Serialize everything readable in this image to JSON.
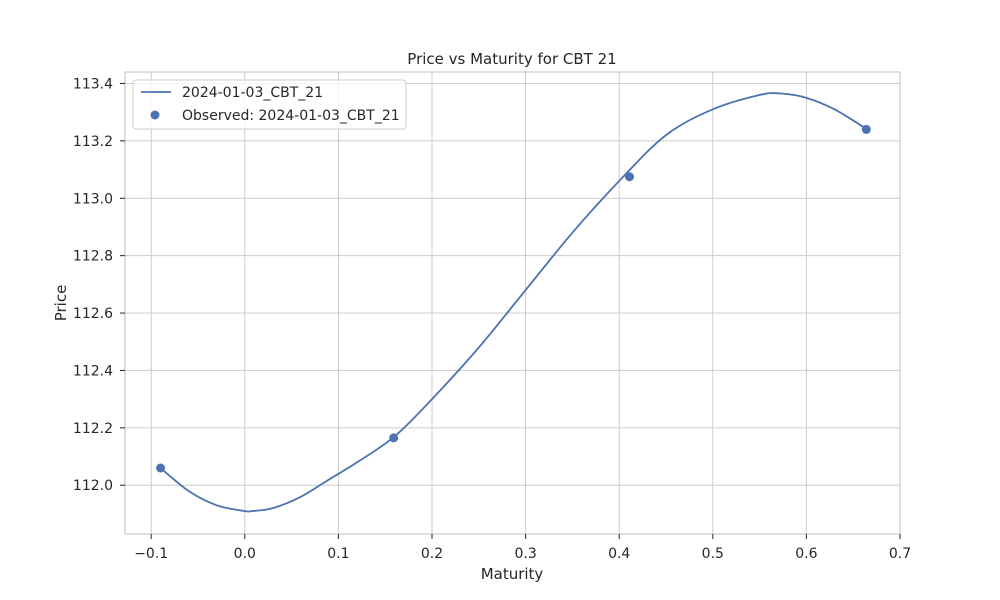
{
  "chart_data": {
    "type": "line",
    "title": "Price vs Maturity for CBT 21",
    "xlabel": "Maturity",
    "ylabel": "Price",
    "xlim": [
      -0.128,
      0.7
    ],
    "ylim": [
      111.83,
      113.44
    ],
    "xticks": [
      -0.1,
      0.0,
      0.1,
      0.2,
      0.3,
      0.4,
      0.5,
      0.6,
      0.7
    ],
    "xtick_labels": [
      "−0.1",
      "0.0",
      "0.1",
      "0.2",
      "0.3",
      "0.4",
      "0.5",
      "0.6",
      "0.7"
    ],
    "yticks": [
      112.0,
      112.2,
      112.4,
      112.6,
      112.8,
      113.0,
      113.2,
      113.4
    ],
    "ytick_labels": [
      "112.0",
      "112.2",
      "112.4",
      "112.6",
      "112.8",
      "113.0",
      "113.2",
      "113.4"
    ],
    "grid": true,
    "legend_position": "top-left",
    "series": [
      {
        "name": "2024-01-03_CBT_21",
        "kind": "line",
        "color": "#4c72b0",
        "x": [
          -0.09,
          -0.06,
          -0.03,
          0.0,
          0.008,
          0.03,
          0.06,
          0.09,
          0.12,
          0.16,
          0.2,
          0.25,
          0.3,
          0.35,
          0.4,
          0.45,
          0.5,
          0.55,
          0.573,
          0.6,
          0.63,
          0.665
        ],
        "y": [
          112.06,
          111.98,
          111.93,
          111.91,
          111.91,
          111.92,
          111.96,
          112.02,
          112.08,
          112.17,
          112.3,
          112.48,
          112.68,
          112.88,
          113.06,
          113.22,
          113.31,
          113.36,
          113.365,
          113.35,
          113.31,
          113.24
        ]
      },
      {
        "name": "Observed: 2024-01-03_CBT_21",
        "kind": "scatter",
        "color": "#4c72b0",
        "x": [
          -0.09,
          0.159,
          0.411,
          0.664
        ],
        "y": [
          112.06,
          112.165,
          113.075,
          113.24
        ]
      }
    ]
  }
}
